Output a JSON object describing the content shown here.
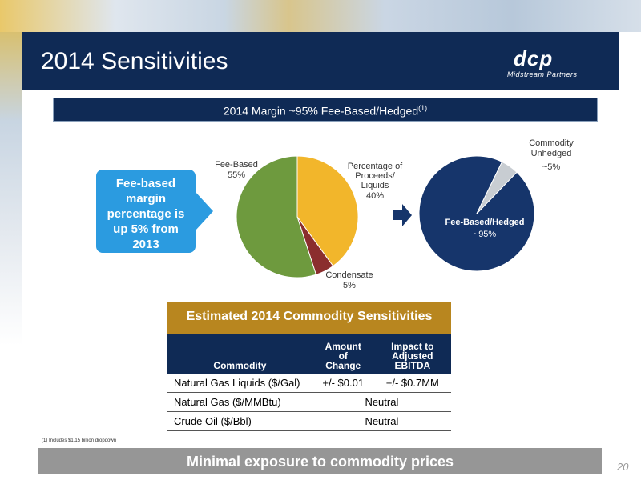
{
  "slide": {
    "title": "2014 Sensitivities",
    "logo_mark": "dcp",
    "logo_sub": "Midstream Partners",
    "subtitle": "2014 Margin ~95% Fee-Based/Hedged",
    "subtitle_ref": "(1)",
    "callout": "Fee-based margin percentage is up 5% from 2013",
    "footnote": "(1) Includes $1.15 billion dropdown",
    "bottom_banner": "Minimal exposure to commodity prices",
    "page_number": "20"
  },
  "chart_data": [
    {
      "type": "pie",
      "slices": [
        {
          "label": "Percentage of Proceeds/ Liquids",
          "value_label": "40%",
          "value": 40,
          "color": "#f2b62b"
        },
        {
          "label": "Condensate",
          "value_label": "5%",
          "value": 5,
          "color": "#8b2e2e"
        },
        {
          "label": "Fee-Based",
          "value_label": "55%",
          "value": 55,
          "color": "#6e9a3e"
        }
      ]
    },
    {
      "type": "pie",
      "slices": [
        {
          "label": "Fee-Based/Hedged",
          "value_label": "~95%",
          "value": 95,
          "color": "#16356b"
        },
        {
          "label": "Commodity Unhedged",
          "value_label": "~5%",
          "value": 5,
          "color": "#c8cdd2"
        }
      ]
    }
  ],
  "sensitivity": {
    "header": "Estimated 2014 Commodity Sensitivities",
    "columns": [
      "Commodity",
      "Amount of Change",
      "Impact to Adjusted EBITDA"
    ],
    "rows": [
      {
        "commodity": "Natural Gas Liquids ($/Gal)",
        "amount": "+/- $0.01",
        "impact": "+/- $0.7MM"
      },
      {
        "commodity": "Natural Gas ($/MMBtu)",
        "merged": "Neutral"
      },
      {
        "commodity": "Crude Oil ($/Bbl)",
        "merged": "Neutral"
      }
    ]
  }
}
